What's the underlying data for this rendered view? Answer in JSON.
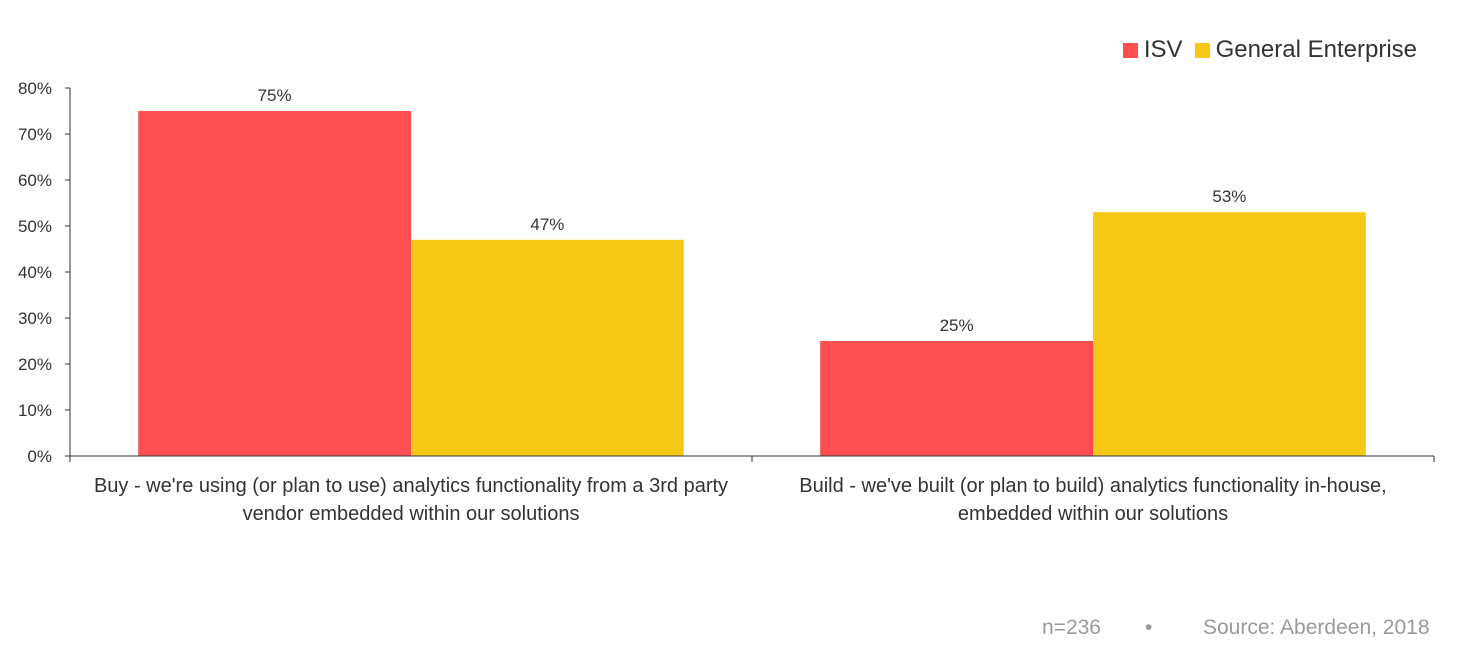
{
  "chart_data": {
    "type": "bar",
    "categories": [
      "Buy - we're using (or plan to use) analytics functionality from a 3rd party vendor embedded within our solutions",
      "Build - we've built (or plan to build) analytics functionality in-house, embedded within our solutions"
    ],
    "series": [
      {
        "name": "ISV",
        "values": [
          75,
          25
        ],
        "color": "#fd4f52"
      },
      {
        "name": "General Enterprise",
        "values": [
          47,
          53
        ],
        "color": "#f6c917"
      }
    ],
    "value_labels": [
      [
        "75%",
        "25%"
      ],
      [
        "47%",
        "53%"
      ]
    ],
    "y_ticks": [
      "0%",
      "10%",
      "20%",
      "30%",
      "40%",
      "50%",
      "60%",
      "70%",
      "80%"
    ],
    "ylim": [
      0,
      80
    ],
    "legend_position": "top-right",
    "grid": false
  },
  "footer": {
    "sample": "n=236",
    "separator": "•",
    "source": "Source: Aberdeen, 2018"
  }
}
